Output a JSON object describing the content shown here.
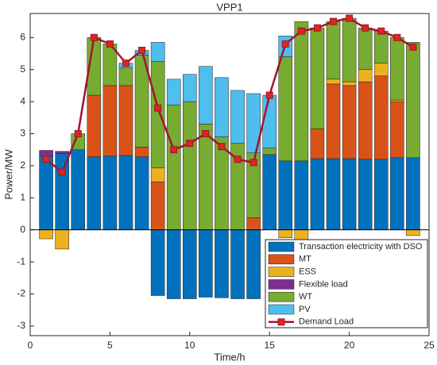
{
  "chart_data": {
    "type": "bar",
    "stacked": true,
    "title": "VPP1",
    "xlabel": "Time/h",
    "ylabel": "Power/MW",
    "x": [
      1,
      2,
      3,
      4,
      5,
      6,
      7,
      8,
      9,
      10,
      11,
      12,
      13,
      14,
      15,
      16,
      17,
      18,
      19,
      20,
      21,
      22,
      23,
      24
    ],
    "xlim": [
      0,
      25
    ],
    "xticks": [
      0,
      5,
      10,
      15,
      20,
      25
    ],
    "ylim": [
      -3.3,
      6.75
    ],
    "yticks": [
      -3,
      -2,
      -1,
      0,
      1,
      2,
      3,
      4,
      5,
      6
    ],
    "legend": "lower right",
    "series": [
      {
        "name": "Transaction electricity with DSO",
        "color": "#0072BD",
        "values": [
          2.3,
          2.38,
          2.5,
          2.28,
          2.3,
          2.32,
          2.28,
          -2.05,
          -2.15,
          -2.15,
          -2.1,
          -2.12,
          -2.15,
          -2.15,
          2.35,
          2.15,
          2.15,
          2.22,
          2.22,
          2.22,
          2.2,
          2.2,
          2.25,
          2.25
        ]
      },
      {
        "name": "MT",
        "color": "#D95319",
        "values": [
          0,
          0,
          0,
          1.92,
          2.2,
          2.18,
          0.3,
          1.5,
          0,
          0,
          0,
          0,
          0,
          0.38,
          0,
          0,
          0,
          0.93,
          2.33,
          2.28,
          2.42,
          2.6,
          1.75,
          0
        ]
      },
      {
        "name": "ESS",
        "color": "#EDB120",
        "values": [
          -0.28,
          -0.6,
          0,
          0,
          0,
          0,
          0,
          0.43,
          0,
          0,
          0,
          0,
          0,
          0,
          0,
          -0.25,
          -0.35,
          0,
          0.15,
          0.12,
          0.38,
          0.4,
          0.05,
          -0.18
        ]
      },
      {
        "name": "Flexible load",
        "color": "#7E2F8E",
        "values": [
          0.18,
          0.07,
          0,
          0,
          0,
          0,
          0,
          0,
          0,
          0,
          0,
          0,
          0,
          0,
          0,
          0,
          0,
          0,
          0,
          0,
          0,
          0,
          0,
          0
        ]
      },
      {
        "name": "WT",
        "color": "#77AC30",
        "values": [
          0,
          0,
          0.5,
          1.8,
          1.3,
          0.55,
          2.87,
          3.32,
          3.9,
          4.0,
          3.3,
          2.9,
          2.7,
          2.02,
          0.2,
          3.25,
          4.35,
          3.15,
          1.8,
          1.98,
          1.3,
          1.0,
          1.95,
          3.6
        ]
      },
      {
        "name": "PV",
        "color": "#4DBEEE",
        "values": [
          0,
          0,
          0,
          0,
          0,
          0.15,
          0.15,
          0.6,
          0.8,
          0.85,
          1.8,
          1.85,
          1.65,
          1.85,
          1.65,
          0.65,
          0,
          0,
          0,
          0,
          0,
          0,
          0,
          0
        ]
      },
      {
        "name": "Demand Load",
        "type": "line",
        "color": "#D9281E",
        "values": [
          2.2,
          1.8,
          3.0,
          6.0,
          5.8,
          5.2,
          5.6,
          3.8,
          2.5,
          2.7,
          3.0,
          2.6,
          2.2,
          2.1,
          4.2,
          5.8,
          6.2,
          6.3,
          6.5,
          6.6,
          6.3,
          6.2,
          6.0,
          5.7
        ]
      }
    ]
  }
}
